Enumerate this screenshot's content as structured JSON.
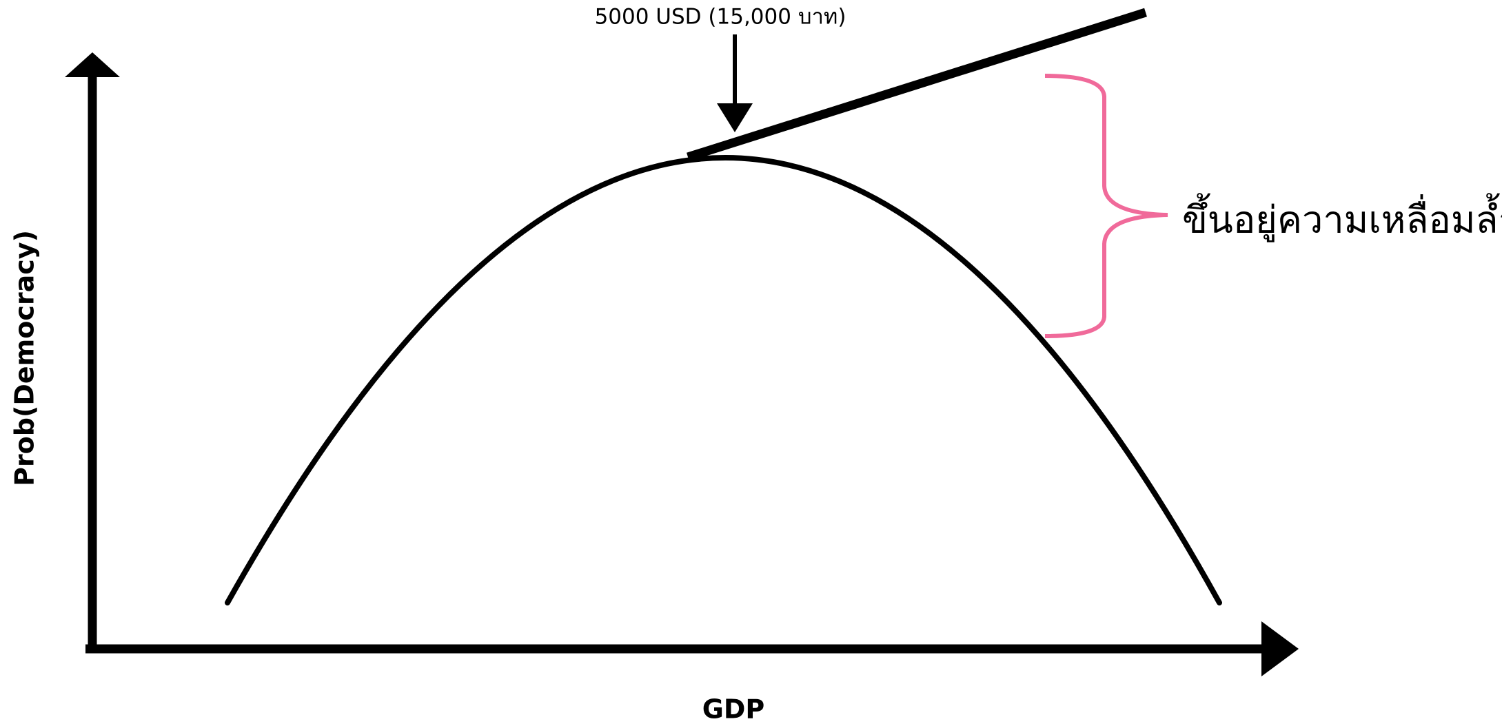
{
  "annotation": "5000 USD (15,000 บาท)",
  "y_axis_label": "Prob(Democracy)",
  "x_axis_label": "GDP",
  "brace_label": "ขึ้นอยู่ความเหลื่อมล้ำ"
}
